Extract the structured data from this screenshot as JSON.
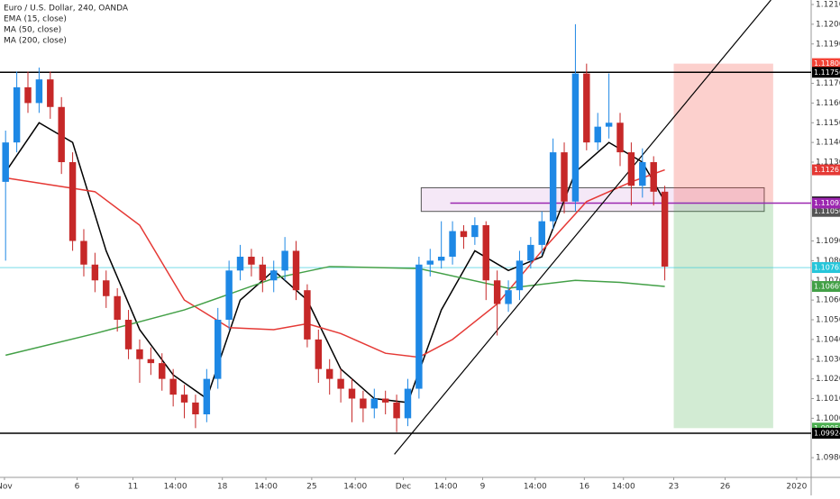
{
  "chart_data": {
    "type": "candlestick",
    "title": "Euro / U.S. Dollar, 240, OANDA",
    "up_color": "#1e88e5",
    "down_color": "#c62828",
    "grid": false,
    "open": [
      1.112,
      1.114,
      1.1168,
      1.116,
      1.1172,
      1.1158,
      1.113,
      1.109,
      1.1078,
      1.107,
      1.1062,
      1.105,
      1.1035,
      1.103,
      1.1028,
      1.102,
      1.1012,
      1.1008,
      1.1002,
      1.102,
      1.105,
      1.1075,
      1.1082,
      1.1078,
      1.107,
      1.1075,
      1.1085,
      1.1065,
      1.104,
      1.1025,
      1.102,
      1.1015,
      1.101,
      1.1005,
      1.101,
      1.1008,
      1.1,
      1.1015,
      1.1078,
      1.108,
      1.1082,
      1.1095,
      1.1092,
      1.1098,
      1.107,
      1.1058,
      1.1065,
      1.108,
      1.1088,
      1.11,
      1.1135,
      1.111,
      1.1175,
      1.114,
      1.1148,
      1.115,
      1.1135,
      1.1118,
      1.113,
      1.1115
    ],
    "high": [
      1.1146,
      1.1176,
      1.1176,
      1.1178,
      1.1176,
      1.1163,
      1.1135,
      1.1096,
      1.1084,
      1.1075,
      1.1066,
      1.1055,
      1.104,
      1.1036,
      1.1033,
      1.1025,
      1.1017,
      1.1012,
      1.1025,
      1.1056,
      1.108,
      1.1088,
      1.1086,
      1.1082,
      1.108,
      1.1092,
      1.109,
      1.1068,
      1.1045,
      1.103,
      1.1025,
      1.102,
      1.1014,
      1.1015,
      1.1014,
      1.1012,
      1.102,
      1.1082,
      1.1086,
      1.11,
      1.11,
      1.1098,
      1.1102,
      1.11,
      1.1075,
      1.107,
      1.1085,
      1.1092,
      1.1105,
      1.1142,
      1.114,
      1.12,
      1.118,
      1.1155,
      1.1175,
      1.1155,
      1.114,
      1.1137,
      1.1133,
      1.1118
    ],
    "low": [
      1.108,
      1.1135,
      1.1155,
      1.1155,
      1.1152,
      1.1124,
      1.1085,
      1.1072,
      1.1064,
      1.1056,
      1.1044,
      1.103,
      1.1018,
      1.1022,
      1.1014,
      1.1006,
      1.1,
      1.0995,
      1.0998,
      1.1015,
      1.1045,
      1.107,
      1.1072,
      1.1064,
      1.1064,
      1.107,
      1.106,
      1.1036,
      1.1018,
      1.1012,
      1.1008,
      1.0998,
      1.0998,
      1.1,
      1.1002,
      1.0993,
      1.0996,
      1.101,
      1.1072,
      1.1076,
      1.1078,
      1.1086,
      1.1088,
      1.106,
      1.1042,
      1.1054,
      1.106,
      1.1076,
      1.1083,
      1.1096,
      1.1104,
      1.1105,
      1.1136,
      1.1136,
      1.1142,
      1.1128,
      1.1108,
      1.1112,
      1.1108,
      1.107
    ],
    "close": [
      1.114,
      1.1168,
      1.116,
      1.1172,
      1.1158,
      1.113,
      1.109,
      1.1078,
      1.107,
      1.1062,
      1.105,
      1.1035,
      1.103,
      1.1028,
      1.102,
      1.1012,
      1.1008,
      1.1002,
      1.102,
      1.105,
      1.1075,
      1.1082,
      1.1078,
      1.107,
      1.1075,
      1.1085,
      1.1065,
      1.104,
      1.1025,
      1.102,
      1.1015,
      1.101,
      1.1005,
      1.101,
      1.1008,
      1.1,
      1.1015,
      1.1078,
      1.108,
      1.1082,
      1.1095,
      1.1092,
      1.1098,
      1.107,
      1.1058,
      1.1065,
      1.108,
      1.1088,
      1.11,
      1.1135,
      1.111,
      1.1175,
      1.114,
      1.1148,
      1.115,
      1.1135,
      1.1118,
      1.113,
      1.1115,
      1.1077
    ],
    "indicators": [
      {
        "name": "EMA (15, close)",
        "color": "#000000",
        "x": [
          0,
          3,
          6,
          9,
          12,
          15,
          18,
          21,
          24,
          27,
          30,
          33,
          36,
          39,
          42,
          45,
          48,
          51,
          54,
          57,
          59
        ],
        "values": [
          1.1125,
          1.115,
          1.114,
          1.1085,
          1.1045,
          1.1022,
          1.101,
          1.106,
          1.1075,
          1.106,
          1.1025,
          1.101,
          1.1008,
          1.1055,
          1.1085,
          1.1075,
          1.1082,
          1.1125,
          1.114,
          1.113,
          1.111
        ]
      },
      {
        "name": "MA (50, close)",
        "color": "#e53935",
        "x": [
          0,
          8,
          12,
          16,
          20,
          24,
          27,
          30,
          34,
          37,
          40,
          44,
          48,
          52,
          56,
          59
        ],
        "values": [
          1.1122,
          1.1115,
          1.1098,
          1.106,
          1.1046,
          1.1045,
          1.1048,
          1.1043,
          1.1033,
          1.1031,
          1.104,
          1.1058,
          1.1085,
          1.111,
          1.112,
          1.11261
        ],
        "last_label": "1.11261"
      },
      {
        "name": "MA (200, close)",
        "color": "#43a047",
        "x": [
          0,
          8,
          16,
          24,
          29,
          37,
          45,
          51,
          55,
          59
        ],
        "values": [
          1.1032,
          1.1043,
          1.1055,
          1.1071,
          1.1077,
          1.1076,
          1.1066,
          1.107,
          1.1069,
          1.10669
        ],
        "last_label": "1.10669"
      }
    ],
    "hlines": [
      {
        "value": 1.11756,
        "label": "1.11756",
        "color": "#000000"
      },
      {
        "value": 1.09924,
        "label": "1.09924",
        "color": "#000000"
      },
      {
        "value": 1.11092,
        "label": "1.11092",
        "color": "#9c27b0",
        "from": 39.8
      },
      {
        "value": 1.10765,
        "label": "1.10765",
        "color": "#26c6da"
      }
    ],
    "zone": {
      "top": 1.1117,
      "bottom": {
        "value": 1.1105,
        "label": "1.11050"
      },
      "start": 37.2,
      "end": 67.9
    },
    "position": {
      "entry": {
        "value": 1.11098,
        "label": "1.11098"
      },
      "stop": {
        "value": 1.118,
        "label": "1.11800"
      },
      "target": {
        "value": 1.0995,
        "label": "1.09950"
      },
      "start": 59.8,
      "end": 68.7
    },
    "trendline": {
      "x": [
        34.8,
        68.5
      ],
      "values": [
        1.09817,
        1.12123
      ]
    },
    "xlim": [
      -0.5,
      72.1
    ],
    "xticks": [
      {
        "value": -0.1,
        "label": "Nov"
      },
      {
        "value": 6.4,
        "label": "6"
      },
      {
        "value": 11.4,
        "label": "11"
      },
      {
        "value": 15.2,
        "label": "14:00"
      },
      {
        "value": 19.4,
        "label": "18"
      },
      {
        "value": 23.3,
        "label": "14:00"
      },
      {
        "value": 27.4,
        "label": "25"
      },
      {
        "value": 31.3,
        "label": "14:00"
      },
      {
        "value": 35.6,
        "label": "Dec"
      },
      {
        "value": 39.4,
        "label": "14:00"
      },
      {
        "value": 42.7,
        "label": "9"
      },
      {
        "value": 47.4,
        "label": "14:00"
      },
      {
        "value": 51.8,
        "label": "16"
      },
      {
        "value": 55.3,
        "label": "14:00"
      },
      {
        "value": 59.8,
        "label": "23"
      },
      {
        "value": 64.4,
        "label": "26"
      },
      {
        "value": 70.8,
        "label": "2020"
      }
    ],
    "ylim": [
      1.097,
      1.12123
    ],
    "yticks": [
      {
        "value": 1.121,
        "label": "1.12100"
      },
      {
        "value": 1.12,
        "label": "1.12000"
      },
      {
        "value": 1.119,
        "label": "1.11900"
      },
      {
        "value": 1.117,
        "label": "1.11700"
      },
      {
        "value": 1.116,
        "label": "1.11600"
      },
      {
        "value": 1.115,
        "label": "1.11500"
      },
      {
        "value": 1.114,
        "label": "1.11400"
      },
      {
        "value": 1.113,
        "label": "1.11300"
      },
      {
        "value": 1.109,
        "label": "1.10900"
      },
      {
        "value": 1.108,
        "label": "1.10800"
      },
      {
        "value": 1.107,
        "label": "1.10700"
      },
      {
        "value": 1.106,
        "label": "1.10600"
      },
      {
        "value": 1.105,
        "label": "1.10500"
      },
      {
        "value": 1.104,
        "label": "1.10400"
      },
      {
        "value": 1.103,
        "label": "1.10300"
      },
      {
        "value": 1.102,
        "label": "1.10200"
      },
      {
        "value": 1.101,
        "label": "1.10100"
      },
      {
        "value": 1.1,
        "label": "1.10000"
      },
      {
        "value": 1.098,
        "label": "1.09800"
      }
    ]
  }
}
